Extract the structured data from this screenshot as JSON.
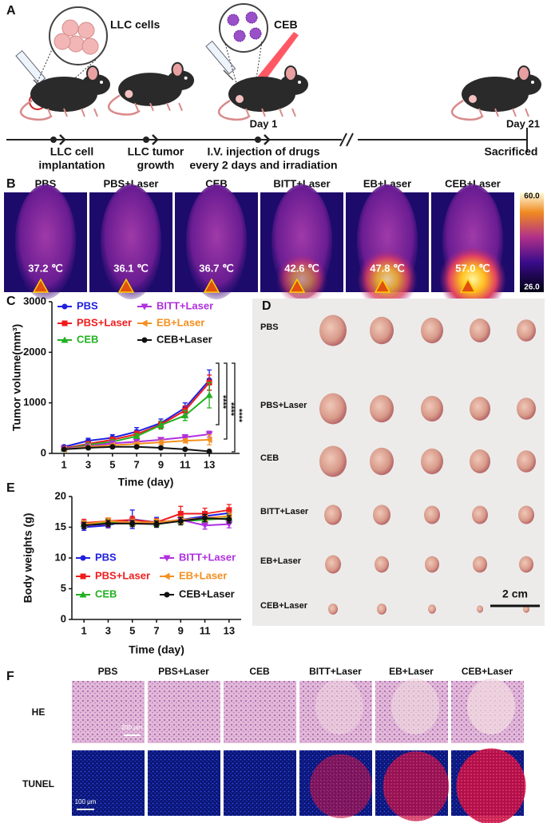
{
  "panel_a": {
    "label": "A",
    "callout_cells": "LLC cells",
    "callout_drug": "CEB",
    "day_start": "Day 1",
    "day_end": "Day 21",
    "steps": [
      [
        "LLC cell",
        "implantation"
      ],
      [
        "LLC tumor",
        "growth"
      ],
      [
        "I.V. injection of drugs",
        "every 2 days and irradiation"
      ],
      [
        "Sacrificed"
      ]
    ]
  },
  "panel_b": {
    "label": "B",
    "groups": [
      {
        "name": "PBS",
        "temp": "37.2 ℃"
      },
      {
        "name": "PBS+Laser",
        "temp": "36.1 ℃"
      },
      {
        "name": "CEB",
        "temp": "36.7 ℃"
      },
      {
        "name": "BITT+Laser",
        "temp": "42.6 ℃"
      },
      {
        "name": "EB+Laser",
        "temp": "47.8 ℃"
      },
      {
        "name": "CEB+Laser",
        "temp": "57.0 ℃"
      }
    ],
    "scale_max": "60.0",
    "scale_min": "26.0"
  },
  "chart_data": [
    {
      "type": "line",
      "panel": "C",
      "ylabel": "Tumor volume(mm³)",
      "xlabel": "Time (day)",
      "x": [
        1,
        3,
        5,
        7,
        9,
        11,
        13
      ],
      "xlim": [
        0,
        15.5
      ],
      "xticks": [
        1,
        3,
        5,
        7,
        9,
        11,
        13
      ],
      "ylim": [
        0,
        3000
      ],
      "yticks": [
        0,
        1000,
        2000,
        3000
      ],
      "series": [
        {
          "name": "PBS",
          "color": "#1f1fe0",
          "marker": "circle",
          "values": [
            130,
            250,
            310,
            430,
            600,
            900,
            1450
          ],
          "errors": [
            30,
            50,
            60,
            80,
            80,
            100,
            200
          ]
        },
        {
          "name": "PBS+Laser",
          "color": "#ef1c1c",
          "marker": "square",
          "values": [
            100,
            190,
            270,
            380,
            570,
            850,
            1400
          ],
          "errors": [
            20,
            40,
            50,
            60,
            70,
            90,
            150
          ]
        },
        {
          "name": "CEB",
          "color": "#22b022",
          "marker": "triangle-up",
          "values": [
            90,
            170,
            230,
            340,
            560,
            750,
            1150
          ],
          "errors": [
            20,
            30,
            40,
            50,
            80,
            100,
            250
          ]
        },
        {
          "name": "BITT+Laser",
          "color": "#b030e0",
          "marker": "triangle-down",
          "values": [
            90,
            140,
            200,
            230,
            270,
            320,
            380
          ],
          "errors": [
            20,
            30,
            30,
            40,
            40,
            50,
            60
          ]
        },
        {
          "name": "EB+Laser",
          "color": "#f39020",
          "marker": "triangle-left",
          "values": [
            80,
            130,
            160,
            190,
            220,
            250,
            270
          ],
          "errors": [
            20,
            20,
            30,
            30,
            40,
            40,
            100
          ]
        },
        {
          "name": "CEB+Laser",
          "color": "#111111",
          "marker": "circle",
          "values": [
            80,
            110,
            130,
            130,
            110,
            80,
            40
          ],
          "errors": [
            10,
            20,
            20,
            20,
            20,
            20,
            10
          ]
        }
      ],
      "annotations": [
        "****",
        "****",
        "****"
      ]
    },
    {
      "type": "line",
      "panel": "E",
      "ylabel": "Body weights (g)",
      "xlabel": "Time (day)",
      "x": [
        1,
        3,
        5,
        7,
        9,
        11,
        13
      ],
      "xlim": [
        0,
        14
      ],
      "xticks": [
        1,
        3,
        5,
        7,
        9,
        11,
        13
      ],
      "ylim": [
        0,
        20
      ],
      "yticks": [
        0,
        5,
        10,
        15,
        20
      ],
      "series": [
        {
          "name": "PBS",
          "color": "#1f1fe0",
          "marker": "circle",
          "values": [
            15.0,
            15.3,
            16.3,
            15.8,
            16.2,
            16.8,
            17.3
          ],
          "errors": [
            0.5,
            0.4,
            1.5,
            0.8,
            0.6,
            0.7,
            0.6
          ]
        },
        {
          "name": "PBS+Laser",
          "color": "#ef1c1c",
          "marker": "square",
          "values": [
            15.7,
            16.0,
            16.2,
            15.8,
            17.2,
            17.2,
            17.8
          ],
          "errors": [
            0.6,
            0.5,
            0.6,
            0.6,
            1.2,
            0.9,
            0.9
          ]
        },
        {
          "name": "CEB",
          "color": "#22b022",
          "marker": "triangle-up",
          "values": [
            15.5,
            15.8,
            15.7,
            15.6,
            16.0,
            16.2,
            16.5
          ],
          "errors": [
            0.5,
            0.5,
            0.5,
            0.5,
            0.6,
            0.6,
            0.6
          ]
        },
        {
          "name": "BITT+Laser",
          "color": "#b030e0",
          "marker": "triangle-down",
          "values": [
            15.3,
            15.5,
            15.8,
            15.5,
            16.2,
            15.3,
            15.5
          ],
          "errors": [
            0.5,
            0.5,
            0.5,
            0.5,
            0.6,
            0.6,
            0.6
          ]
        },
        {
          "name": "EB+Laser",
          "color": "#f39020",
          "marker": "triangle-left",
          "values": [
            15.5,
            16.0,
            15.8,
            15.8,
            16.2,
            16.5,
            16.8
          ],
          "errors": [
            0.5,
            0.5,
            0.5,
            0.5,
            0.6,
            0.6,
            0.6
          ]
        },
        {
          "name": "CEB+Laser",
          "color": "#111111",
          "marker": "circle",
          "values": [
            15.3,
            15.6,
            15.6,
            15.5,
            16.0,
            16.5,
            16.3
          ],
          "errors": [
            0.5,
            0.5,
            0.5,
            0.5,
            0.6,
            0.6,
            0.6
          ]
        }
      ]
    }
  ],
  "panel_d": {
    "label": "D",
    "rows": [
      "PBS",
      "PBS+Laser",
      "CEB",
      "BITT+Laser",
      "EB+Laser",
      "CEB+Laser"
    ],
    "scale_bar": "2 cm"
  },
  "panel_f": {
    "label": "F",
    "columns": [
      "PBS",
      "PBS+Laser",
      "CEB",
      "BITT+Laser",
      "EB+Laser",
      "CEB+Laser"
    ],
    "rows": [
      "HE",
      "TUNEL"
    ],
    "scale_bars": [
      "200 μm",
      "100 μm"
    ]
  }
}
